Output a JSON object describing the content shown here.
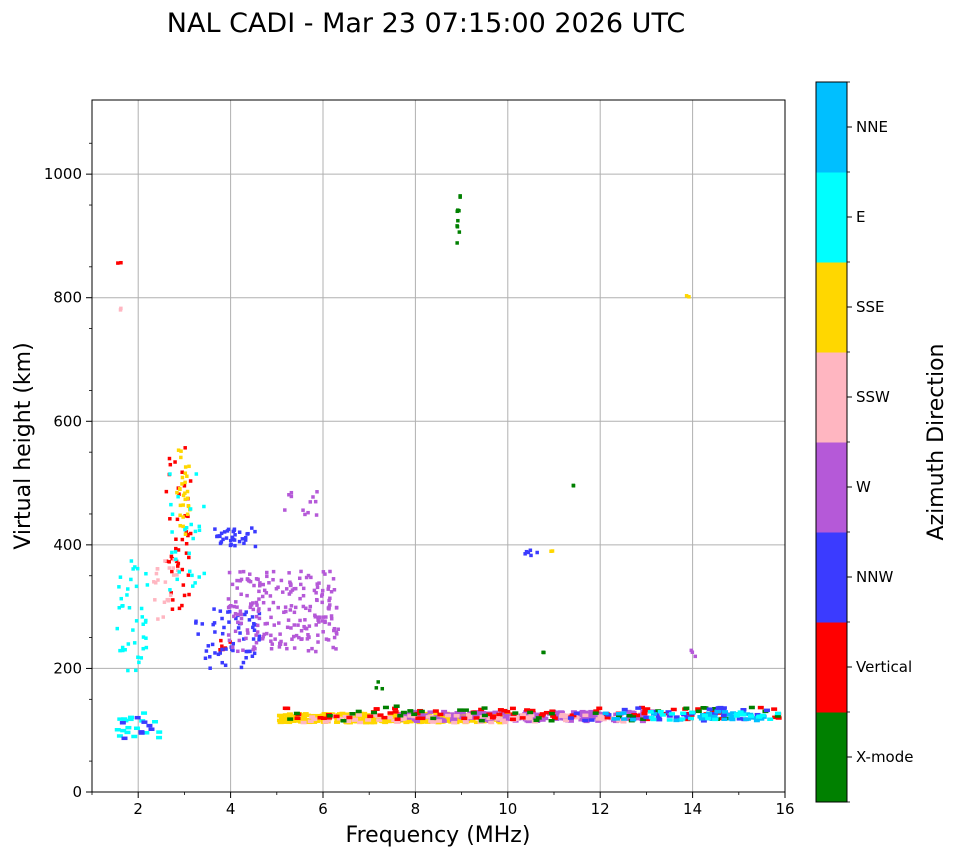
{
  "chart_data": {
    "type": "scatter",
    "title": "NAL CADI - Mar 23 07:15:00 2026 UTC",
    "xlabel": "Frequency (MHz)",
    "ylabel": "Virtual height (km)",
    "xlim": [
      1.0,
      16.0
    ],
    "ylim": [
      0,
      1120
    ],
    "x_ticks": [
      "2",
      "4",
      "6",
      "8",
      "10",
      "12",
      "14",
      "16"
    ],
    "y_ticks": [
      "0",
      "200",
      "400",
      "600",
      "800",
      "1000"
    ],
    "grid": true,
    "colorbar": {
      "label": "Azimuth Direction",
      "categories": [
        "X-mode",
        "Vertical",
        "NNW",
        "W",
        "SSW",
        "SSE",
        "E",
        "NNE"
      ],
      "colors": [
        "#008000",
        "#ff0000",
        "#3b3bff",
        "#b559d8",
        "#ffb6c1",
        "#ffd700",
        "#00ffff",
        "#00bfff"
      ]
    },
    "echo_regions": [
      {
        "category": "X-mode",
        "x": [
          8.85,
          8.95
        ],
        "y": [
          880,
          990
        ],
        "count": 10
      },
      {
        "category": "X-mode",
        "x": [
          11.2,
          11.4
        ],
        "y": [
          498,
          502
        ],
        "count": 2
      },
      {
        "category": "X-mode",
        "x": [
          10.7,
          10.9
        ],
        "y": [
          225,
          229
        ],
        "count": 2
      },
      {
        "category": "X-mode",
        "x": [
          7.1,
          7.25
        ],
        "y": [
          168,
          185
        ],
        "count": 3
      },
      {
        "category": "Vertical",
        "x": [
          2.55,
          3.1
        ],
        "y": [
          290,
          560
        ],
        "count": 45
      },
      {
        "category": "Vertical",
        "x": [
          1.5,
          1.6
        ],
        "y": [
          855,
          862
        ],
        "count": 2
      },
      {
        "category": "Vertical",
        "x": [
          3.7,
          4.0
        ],
        "y": [
          230,
          250
        ],
        "count": 6
      },
      {
        "category": "NNW",
        "x": [
          3.6,
          4.5
        ],
        "y": [
          400,
          430
        ],
        "count": 35
      },
      {
        "category": "NNW",
        "x": [
          3.2,
          4.6
        ],
        "y": [
          200,
          300
        ],
        "count": 60
      },
      {
        "category": "NNW",
        "x": [
          10.3,
          10.65
        ],
        "y": [
          385,
          395
        ],
        "count": 6
      },
      {
        "category": "W",
        "x": [
          3.9,
          6.3
        ],
        "y": [
          230,
          360
        ],
        "count": 220
      },
      {
        "category": "W",
        "x": [
          5.0,
          6.0
        ],
        "y": [
          440,
          490
        ],
        "count": 12
      },
      {
        "category": "W",
        "x": [
          13.85,
          14.05
        ],
        "y": [
          200,
          260
        ],
        "count": 3
      },
      {
        "category": "SSW",
        "x": [
          2.3,
          2.9
        ],
        "y": [
          280,
          380
        ],
        "count": 22
      },
      {
        "category": "SSW",
        "x": [
          1.5,
          1.6
        ],
        "y": [
          780,
          790
        ],
        "count": 2
      },
      {
        "category": "SSE",
        "x": [
          2.8,
          3.1
        ],
        "y": [
          420,
          580
        ],
        "count": 30
      },
      {
        "category": "SSE",
        "x": [
          13.8,
          14.1
        ],
        "y": [
          802,
          806
        ],
        "count": 2
      },
      {
        "category": "SSE",
        "x": [
          10.75,
          11.0
        ],
        "y": [
          388,
          393
        ],
        "count": 2
      },
      {
        "category": "E",
        "x": [
          1.5,
          2.2
        ],
        "y": [
          190,
          380
        ],
        "count": 40
      },
      {
        "category": "E",
        "x": [
          2.6,
          3.4
        ],
        "y": [
          330,
          520
        ],
        "count": 28
      }
    ],
    "traces": [
      {
        "category": "SSE",
        "x": [
          5.0,
          10.0
        ],
        "y": [
          115,
          130
        ],
        "count": 320
      },
      {
        "category": "W",
        "x": [
          7.6,
          13.0
        ],
        "y": [
          117,
          133
        ],
        "count": 220
      },
      {
        "category": "SSW",
        "x": [
          5.5,
          12.5
        ],
        "y": [
          115,
          128
        ],
        "count": 90
      },
      {
        "category": "Vertical",
        "x": [
          5.0,
          15.8
        ],
        "y": [
          120,
          140
        ],
        "count": 90
      },
      {
        "category": "X-mode",
        "x": [
          5.0,
          15.8
        ],
        "y": [
          118,
          142
        ],
        "count": 45
      },
      {
        "category": "NNW",
        "x": [
          11.0,
          15.8
        ],
        "y": [
          118,
          140
        ],
        "count": 40
      },
      {
        "category": "NNE",
        "x": [
          12.0,
          15.8
        ],
        "y": [
          118,
          134
        ],
        "count": 40
      },
      {
        "category": "E",
        "x": [
          13.0,
          15.8
        ],
        "y": [
          118,
          135
        ],
        "count": 25
      },
      {
        "category": "E",
        "x": [
          1.45,
          2.4
        ],
        "y": [
          88,
          135
        ],
        "count": 18
      },
      {
        "category": "NNW",
        "x": [
          1.5,
          2.4
        ],
        "y": [
          88,
          135
        ],
        "count": 8
      }
    ]
  }
}
